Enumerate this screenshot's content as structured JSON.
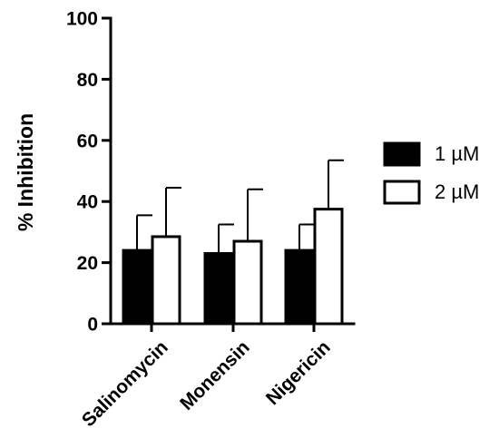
{
  "chart_data": {
    "type": "bar",
    "title": "",
    "xlabel": "",
    "ylabel": "% Inhibition",
    "ylim": [
      0,
      100
    ],
    "yticks": [
      0,
      20,
      40,
      60,
      80,
      100
    ],
    "categories": [
      "Salinomycin",
      "Monensin",
      "Nigericin"
    ],
    "series": [
      {
        "name": "1 µM",
        "values": [
          24,
          23,
          24
        ],
        "error": [
          11.5,
          9.5,
          8.5
        ],
        "color": "#000000"
      },
      {
        "name": "2 µM",
        "values": [
          28.5,
          27,
          37.5
        ],
        "error": [
          16,
          17,
          16
        ],
        "color": "#ffffff"
      }
    ],
    "error_bars": "upper",
    "legend_position": "right",
    "grid": false
  }
}
